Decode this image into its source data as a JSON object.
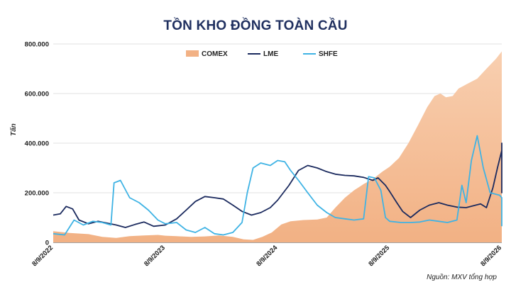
{
  "chart_data": {
    "type": "area",
    "title": "TỒN KHO ĐỒNG TOÀN CẦU",
    "ylabel": "Tấn",
    "xlabel": "",
    "ylim": [
      0,
      800000
    ],
    "yticks": [
      "0",
      "200.000",
      "400.000",
      "600.000",
      "800.000"
    ],
    "ytick_values": [
      0,
      200000,
      400000,
      600000,
      800000
    ],
    "xticks": [
      "8/9/2022",
      "8/9/2023",
      "8/9/2024",
      "8/9/2025",
      "8/9/2026"
    ],
    "xtick_values": [
      "2022-09-08",
      "2023-09-08",
      "2024-09-08",
      "2025-09-08",
      "2026-09-08"
    ],
    "grid": "horizontal",
    "legend_position": "top",
    "source": "Nguồn: MXV tổng hợp",
    "series": [
      {
        "name": "COMEX",
        "style": "area",
        "color": "#f2b184",
        "points": [
          [
            "2022-09-08",
            45000
          ],
          [
            "2022-11-01",
            38000
          ],
          [
            "2023-01-01",
            33000
          ],
          [
            "2023-02-15",
            22000
          ],
          [
            "2023-04-01",
            18000
          ],
          [
            "2023-05-15",
            25000
          ],
          [
            "2023-07-01",
            28000
          ],
          [
            "2023-08-15",
            30000
          ],
          [
            "2023-09-08",
            27000
          ],
          [
            "2023-10-15",
            25000
          ],
          [
            "2023-12-01",
            22000
          ],
          [
            "2024-01-15",
            24000
          ],
          [
            "2024-03-01",
            28000
          ],
          [
            "2024-04-15",
            22000
          ],
          [
            "2024-05-20",
            12000
          ],
          [
            "2024-06-20",
            10000
          ],
          [
            "2024-07-20",
            22000
          ],
          [
            "2024-08-20",
            40000
          ],
          [
            "2024-09-20",
            72000
          ],
          [
            "2024-10-20",
            85000
          ],
          [
            "2024-12-01",
            90000
          ],
          [
            "2025-01-15",
            92000
          ],
          [
            "2025-02-15",
            100000
          ],
          [
            "2025-03-15",
            140000
          ],
          [
            "2025-04-15",
            180000
          ],
          [
            "2025-05-15",
            210000
          ],
          [
            "2025-06-15",
            235000
          ],
          [
            "2025-07-15",
            255000
          ],
          [
            "2025-08-15",
            285000
          ],
          [
            "2025-09-08",
            305000
          ],
          [
            "2025-10-08",
            340000
          ],
          [
            "2025-11-08",
            400000
          ],
          [
            "2025-12-08",
            470000
          ],
          [
            "2026-01-08",
            545000
          ],
          [
            "2026-02-01",
            590000
          ],
          [
            "2026-02-20",
            600000
          ],
          [
            "2026-03-10",
            585000
          ],
          [
            "2026-04-01",
            590000
          ],
          [
            "2026-04-20",
            620000
          ],
          [
            "2026-05-20",
            640000
          ],
          [
            "2026-06-20",
            660000
          ],
          [
            "2026-07-20",
            700000
          ],
          [
            "2026-08-20",
            740000
          ],
          [
            "2026-09-08",
            770000
          ]
        ]
      },
      {
        "name": "LME",
        "style": "line",
        "color": "#1b2a5e",
        "points": [
          [
            "2022-09-08",
            110000
          ],
          [
            "2022-10-01",
            115000
          ],
          [
            "2022-10-20",
            145000
          ],
          [
            "2022-11-10",
            135000
          ],
          [
            "2022-12-01",
            90000
          ],
          [
            "2023-01-01",
            75000
          ],
          [
            "2023-02-01",
            85000
          ],
          [
            "2023-03-01",
            78000
          ],
          [
            "2023-04-01",
            70000
          ],
          [
            "2023-05-01",
            60000
          ],
          [
            "2023-06-01",
            72000
          ],
          [
            "2023-07-01",
            82000
          ],
          [
            "2023-08-01",
            65000
          ],
          [
            "2023-09-08",
            70000
          ],
          [
            "2023-10-15",
            95000
          ],
          [
            "2023-11-15",
            130000
          ],
          [
            "2023-12-15",
            165000
          ],
          [
            "2024-01-15",
            185000
          ],
          [
            "2024-02-15",
            180000
          ],
          [
            "2024-03-15",
            175000
          ],
          [
            "2024-04-15",
            150000
          ],
          [
            "2024-05-15",
            125000
          ],
          [
            "2024-06-15",
            110000
          ],
          [
            "2024-07-15",
            120000
          ],
          [
            "2024-08-15",
            140000
          ],
          [
            "2024-09-08",
            170000
          ],
          [
            "2024-10-15",
            230000
          ],
          [
            "2024-11-15",
            290000
          ],
          [
            "2024-12-15",
            310000
          ],
          [
            "2025-01-15",
            300000
          ],
          [
            "2025-02-15",
            285000
          ],
          [
            "2025-03-15",
            275000
          ],
          [
            "2025-04-15",
            270000
          ],
          [
            "2025-05-15",
            268000
          ],
          [
            "2025-06-15",
            262000
          ],
          [
            "2025-07-15",
            250000
          ],
          [
            "2025-08-01",
            260000
          ],
          [
            "2025-08-25",
            230000
          ],
          [
            "2025-09-08",
            205000
          ],
          [
            "2025-10-01",
            160000
          ],
          [
            "2025-10-20",
            125000
          ],
          [
            "2025-11-15",
            100000
          ],
          [
            "2025-12-15",
            130000
          ],
          [
            "2026-01-15",
            150000
          ],
          [
            "2026-02-15",
            160000
          ],
          [
            "2026-03-15",
            150000
          ],
          [
            "2026-04-15",
            142000
          ],
          [
            "2026-05-15",
            140000
          ],
          [
            "2026-06-15",
            150000
          ],
          [
            "2026-07-01",
            155000
          ],
          [
            "2026-07-20",
            140000
          ],
          [
            "2026-08-10",
            220000
          ],
          [
            "2026-08-25",
            300000
          ],
          [
            "2026-09-08",
            370000
          ],
          [
            "2026-10-01",
            400000
          ],
          [
            "2026-10-20",
            395000
          ],
          [
            "2026-11-15",
            360000
          ],
          [
            "2026-12-15",
            300000
          ],
          [
            "2027-01-15",
            240000
          ],
          [
            "2027-02-01",
            200000
          ],
          [
            "2027-02-15",
            240000
          ]
        ]
      },
      {
        "name": "SHFE",
        "style": "line",
        "color": "#3fb3e4",
        "points": [
          [
            "2022-09-08",
            35000
          ],
          [
            "2022-10-15",
            30000
          ],
          [
            "2022-11-15",
            90000
          ],
          [
            "2022-12-15",
            70000
          ],
          [
            "2023-01-15",
            85000
          ],
          [
            "2023-02-15",
            80000
          ],
          [
            "2023-03-15",
            70000
          ],
          [
            "2023-03-25",
            240000
          ],
          [
            "2023-04-15",
            250000
          ],
          [
            "2023-05-15",
            180000
          ],
          [
            "2023-06-15",
            160000
          ],
          [
            "2023-07-15",
            130000
          ],
          [
            "2023-08-15",
            90000
          ],
          [
            "2023-09-08",
            75000
          ],
          [
            "2023-10-15",
            80000
          ],
          [
            "2023-11-15",
            50000
          ],
          [
            "2023-12-15",
            40000
          ],
          [
            "2024-01-15",
            60000
          ],
          [
            "2024-02-15",
            35000
          ],
          [
            "2024-03-15",
            30000
          ],
          [
            "2024-04-15",
            40000
          ],
          [
            "2024-05-15",
            80000
          ],
          [
            "2024-06-01",
            200000
          ],
          [
            "2024-06-20",
            300000
          ],
          [
            "2024-07-15",
            320000
          ],
          [
            "2024-08-15",
            310000
          ],
          [
            "2024-09-08",
            330000
          ],
          [
            "2024-10-01",
            325000
          ],
          [
            "2024-10-20",
            290000
          ],
          [
            "2024-11-15",
            250000
          ],
          [
            "2024-12-15",
            200000
          ],
          [
            "2025-01-15",
            150000
          ],
          [
            "2025-02-15",
            120000
          ],
          [
            "2025-03-15",
            100000
          ],
          [
            "2025-04-15",
            95000
          ],
          [
            "2025-05-15",
            90000
          ],
          [
            "2025-06-15",
            95000
          ],
          [
            "2025-07-01",
            265000
          ],
          [
            "2025-07-20",
            260000
          ],
          [
            "2025-08-10",
            210000
          ],
          [
            "2025-08-25",
            100000
          ],
          [
            "2025-09-08",
            85000
          ],
          [
            "2025-10-15",
            80000
          ],
          [
            "2025-11-15",
            80000
          ],
          [
            "2025-12-15",
            82000
          ],
          [
            "2026-01-15",
            90000
          ],
          [
            "2026-02-15",
            85000
          ],
          [
            "2026-03-15",
            80000
          ],
          [
            "2026-04-15",
            90000
          ],
          [
            "2026-05-01",
            230000
          ],
          [
            "2026-05-15",
            160000
          ],
          [
            "2026-06-01",
            330000
          ],
          [
            "2026-06-20",
            430000
          ],
          [
            "2026-07-10",
            300000
          ],
          [
            "2026-08-01",
            200000
          ],
          [
            "2026-09-01",
            190000
          ],
          [
            "2026-10-01",
            180000
          ],
          [
            "2026-11-01",
            120000
          ],
          [
            "2026-12-01",
            80000
          ],
          [
            "2027-01-15",
            70000
          ],
          [
            "2027-02-01",
            85000
          ],
          [
            "2027-02-15",
            65000
          ]
        ]
      }
    ]
  }
}
